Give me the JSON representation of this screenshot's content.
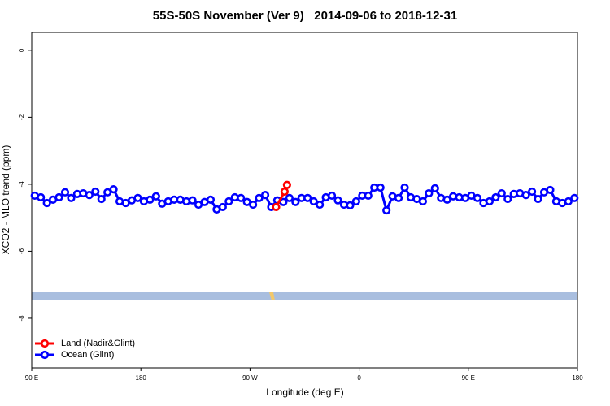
{
  "chart_data": {
    "type": "line",
    "title": "55S-50S November (Ver 9)   2014-09-06 to 2018-12-31",
    "x_label": "Longitude (deg E)",
    "y_label": "XCO2 - MLO trend (ppm)",
    "xlim": [
      90,
      540
    ],
    "xticks": [
      {
        "value": 90,
        "label": "90 E"
      },
      {
        "value": 180,
        "label": "180"
      },
      {
        "value": 270,
        "label": "90 W"
      },
      {
        "value": 360,
        "label": "0"
      },
      {
        "value": 450,
        "label": "90 E"
      },
      {
        "value": 540,
        "label": "180"
      }
    ],
    "ylim": [
      -9.48,
      0.53
    ],
    "yticks": [
      0,
      -2,
      -4,
      -6,
      -8
    ],
    "legend": "bottom-left",
    "series": [
      {
        "name": "Land (Nadir&Glint)",
        "color": "#ff0000",
        "x": [
          291.5,
          298.5,
          300.5
        ],
        "values": [
          -4.68,
          -4.22,
          -4.02
        ]
      },
      {
        "name": "Ocean (Glint)",
        "color": "#0000ff",
        "x": [
          92.5,
          97.5,
          102.5,
          107.5,
          112.5,
          117.5,
          122.5,
          127.5,
          132.5,
          137.5,
          142.5,
          147.5,
          152.5,
          157.5,
          162.5,
          167.5,
          172.5,
          177.5,
          182.5,
          187.5,
          192.5,
          197.5,
          202.5,
          207.5,
          212.5,
          217.5,
          222.5,
          227.5,
          232.5,
          237.5,
          242.5,
          247.5,
          252.5,
          257.5,
          262.5,
          267.5,
          272.5,
          277.5,
          282.5,
          287.5,
          292.5,
          297.5,
          302.5,
          307.5,
          312.5,
          317.5,
          322.5,
          327.5,
          332.5,
          337.5,
          342.5,
          347.5,
          352.5,
          357.5,
          362.5,
          367.5,
          372.5,
          377.5,
          382.5,
          387.5,
          392.5,
          397.5,
          402.5,
          407.5,
          412.5,
          417.5,
          422.5,
          427.5,
          432.5,
          437.5,
          442.5,
          447.5,
          452.5,
          457.5,
          462.5,
          467.5,
          472.5,
          477.5,
          482.5,
          487.5,
          492.5,
          497.5,
          502.5,
          507.5,
          512.5,
          517.5,
          522.5,
          527.5,
          532.5,
          537.5
        ],
        "values": [
          -4.34,
          -4.39,
          -4.56,
          -4.46,
          -4.39,
          -4.24,
          -4.41,
          -4.29,
          -4.27,
          -4.32,
          -4.22,
          -4.44,
          -4.24,
          -4.15,
          -4.51,
          -4.56,
          -4.48,
          -4.41,
          -4.51,
          -4.46,
          -4.36,
          -4.58,
          -4.51,
          -4.46,
          -4.46,
          -4.51,
          -4.48,
          -4.61,
          -4.53,
          -4.46,
          -4.75,
          -4.68,
          -4.51,
          -4.39,
          -4.41,
          -4.53,
          -4.61,
          -4.41,
          -4.32,
          -4.68,
          -4.48,
          -4.53,
          -4.41,
          -4.53,
          -4.41,
          -4.41,
          -4.51,
          -4.61,
          -4.39,
          -4.34,
          -4.48,
          -4.61,
          -4.63,
          -4.51,
          -4.34,
          -4.34,
          -4.1,
          -4.1,
          -4.78,
          -4.36,
          -4.41,
          -4.1,
          -4.39,
          -4.44,
          -4.51,
          -4.27,
          -4.12,
          -4.41,
          -4.46,
          -4.36,
          -4.39,
          -4.41,
          -4.34,
          -4.41,
          -4.56,
          -4.51,
          -4.39,
          -4.27,
          -4.44,
          -4.29,
          -4.27,
          -4.32,
          -4.22,
          -4.44,
          -4.24,
          -4.17,
          -4.51,
          -4.56,
          -4.51,
          -4.41
        ]
      }
    ]
  }
}
